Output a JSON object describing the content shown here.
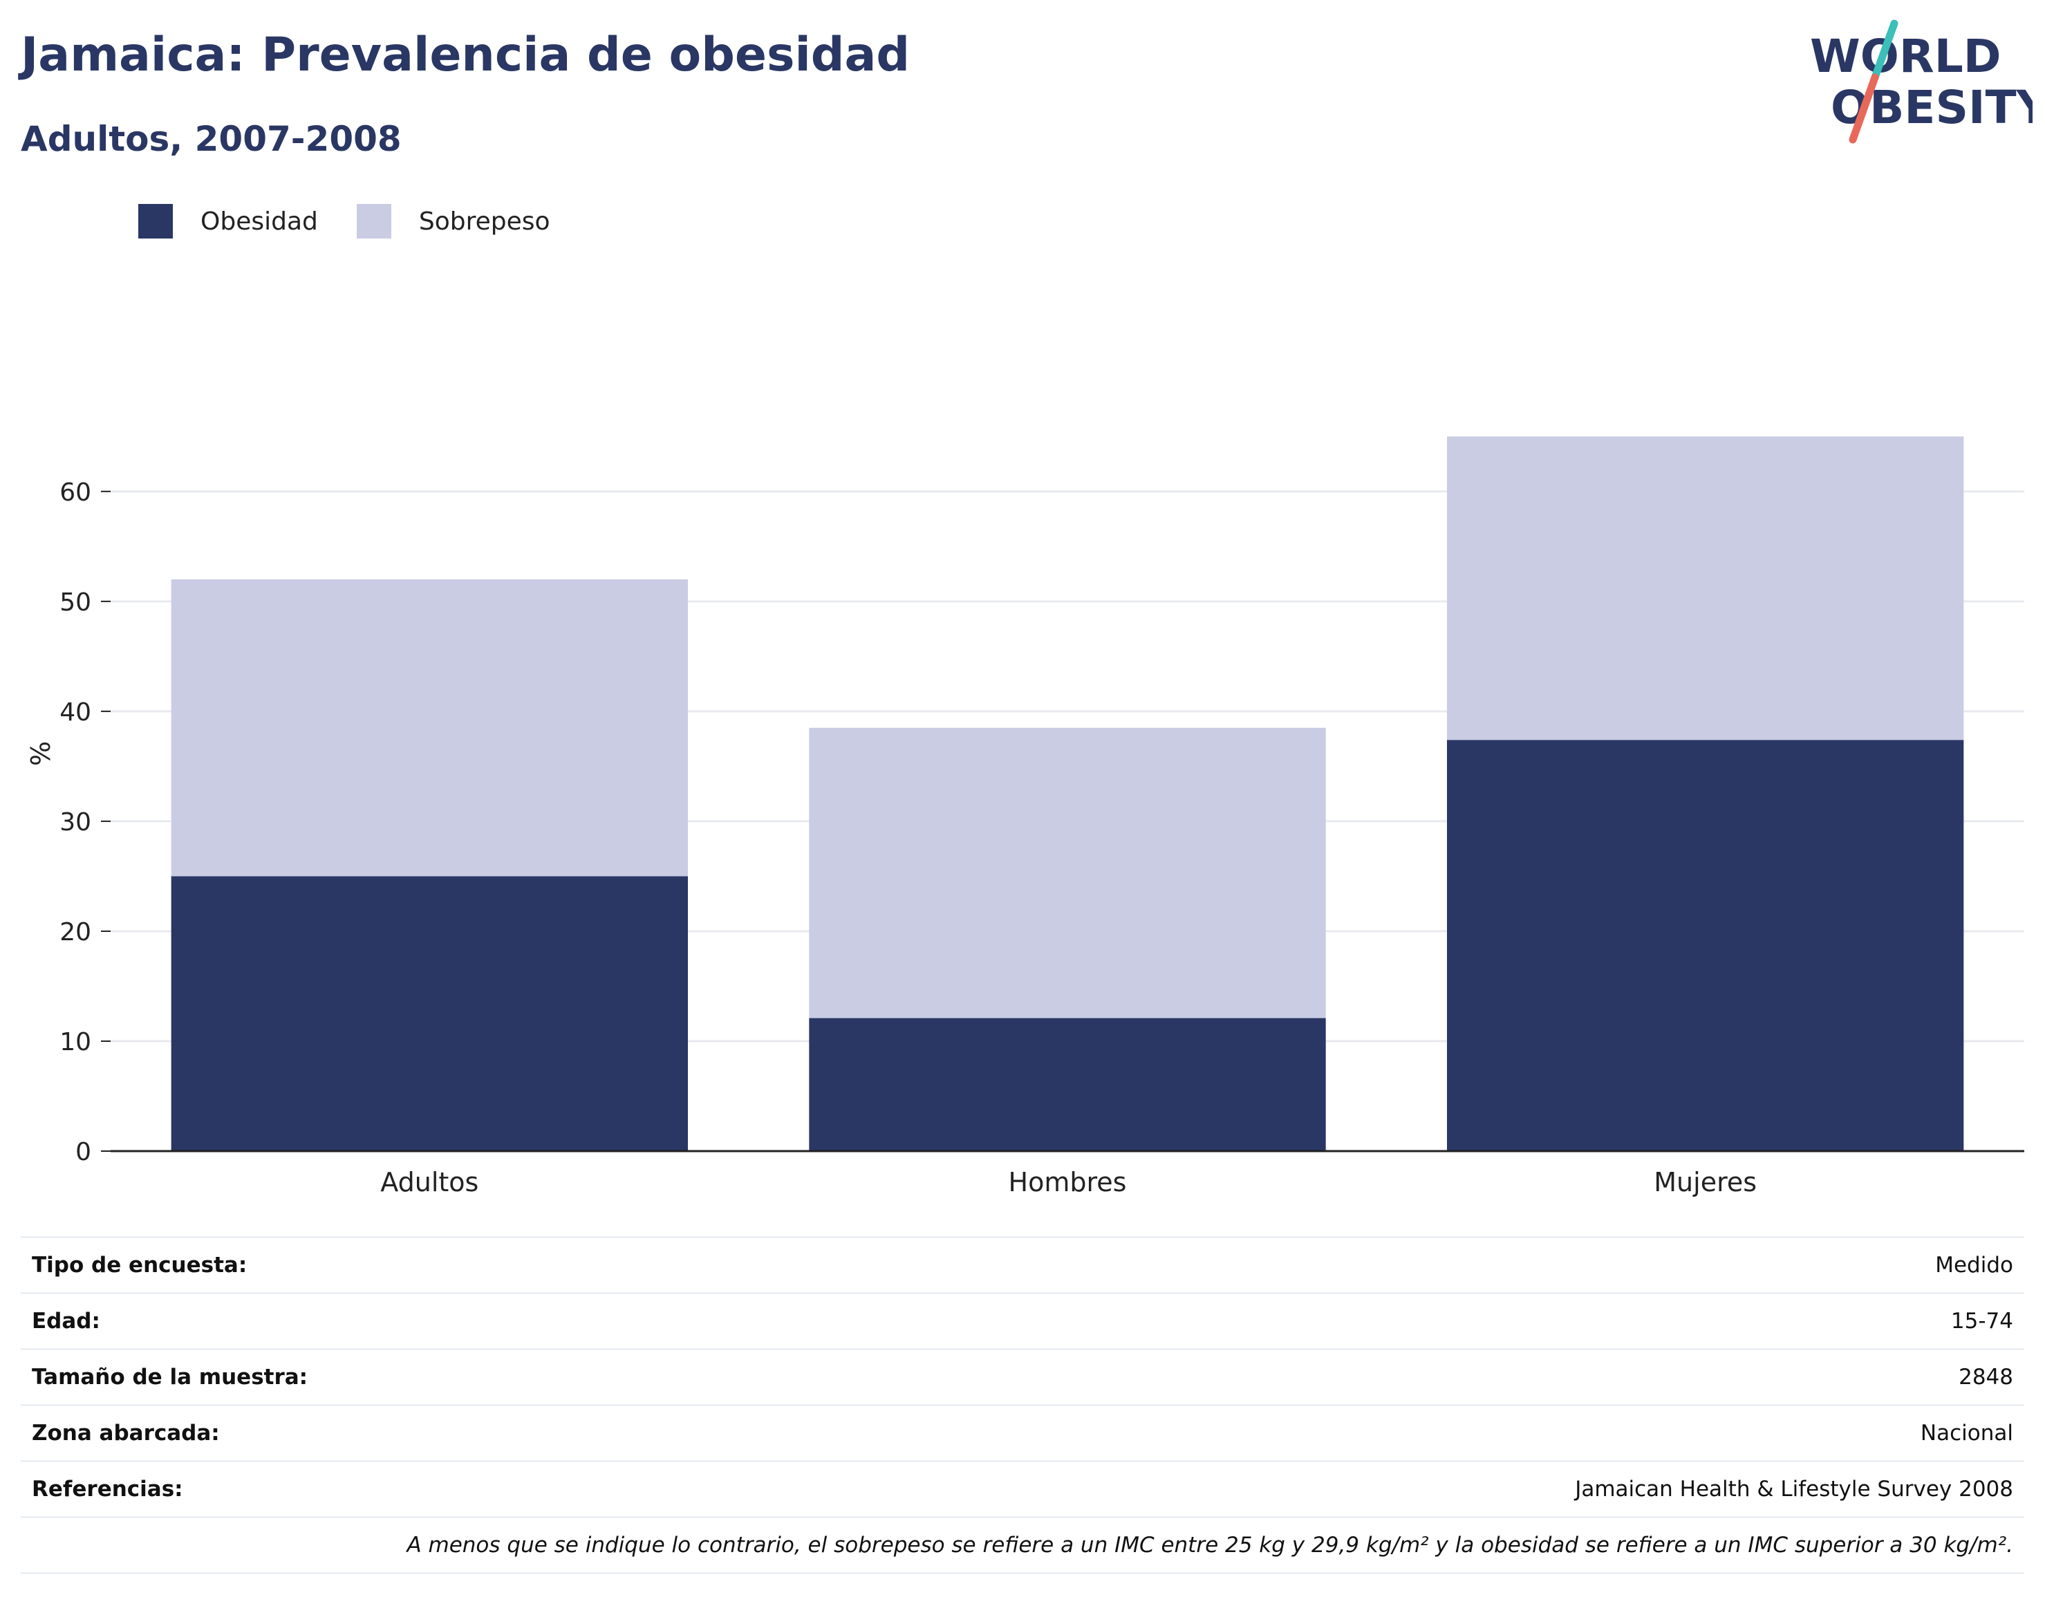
{
  "header": {
    "title": "Jamaica: Prevalencia de obesidad",
    "subtitle": "Adultos, 2007-2008"
  },
  "logo": {
    "line1": "WORLD",
    "line2": "OBESITY",
    "colors": {
      "text": "#2a3764",
      "slash_top": "#3bbfb8",
      "slash_bottom": "#e8685a"
    }
  },
  "colors": {
    "obesidad": "#2a3764",
    "sobrepeso": "#cacce4",
    "grid": "#e8eaf0",
    "axis": "#222222"
  },
  "chart_data": {
    "type": "bar",
    "stacked": true,
    "categories": [
      "Adultos",
      "Hombres",
      "Mujeres"
    ],
    "series": [
      {
        "name": "Obesidad",
        "values": [
          25.0,
          12.1,
          37.4
        ],
        "color": "#2a3764"
      },
      {
        "name": "Sobrepeso",
        "values": [
          27.0,
          26.4,
          27.6
        ],
        "color": "#cacce4"
      }
    ],
    "ylabel": "%",
    "ylim": [
      0,
      72
    ],
    "yticks": [
      0,
      10,
      20,
      30,
      40,
      50,
      60
    ],
    "grid": true,
    "legend_position": "top-left"
  },
  "info_table": {
    "rows": [
      {
        "label": "Tipo de encuesta:",
        "value": "Medido"
      },
      {
        "label": "Edad:",
        "value": "15-74"
      },
      {
        "label": "Tamaño de la muestra:",
        "value": "2848"
      },
      {
        "label": "Zona abarcada:",
        "value": "Nacional"
      },
      {
        "label": "Referencias:",
        "value": "Jamaican Health & Lifestyle Survey 2008"
      }
    ],
    "note": "A menos que se indique lo contrario, el sobrepeso se refiere a un IMC entre 25 kg y 29,9 kg/m² y la obesidad se refiere a un IMC superior a 30 kg/m²."
  }
}
